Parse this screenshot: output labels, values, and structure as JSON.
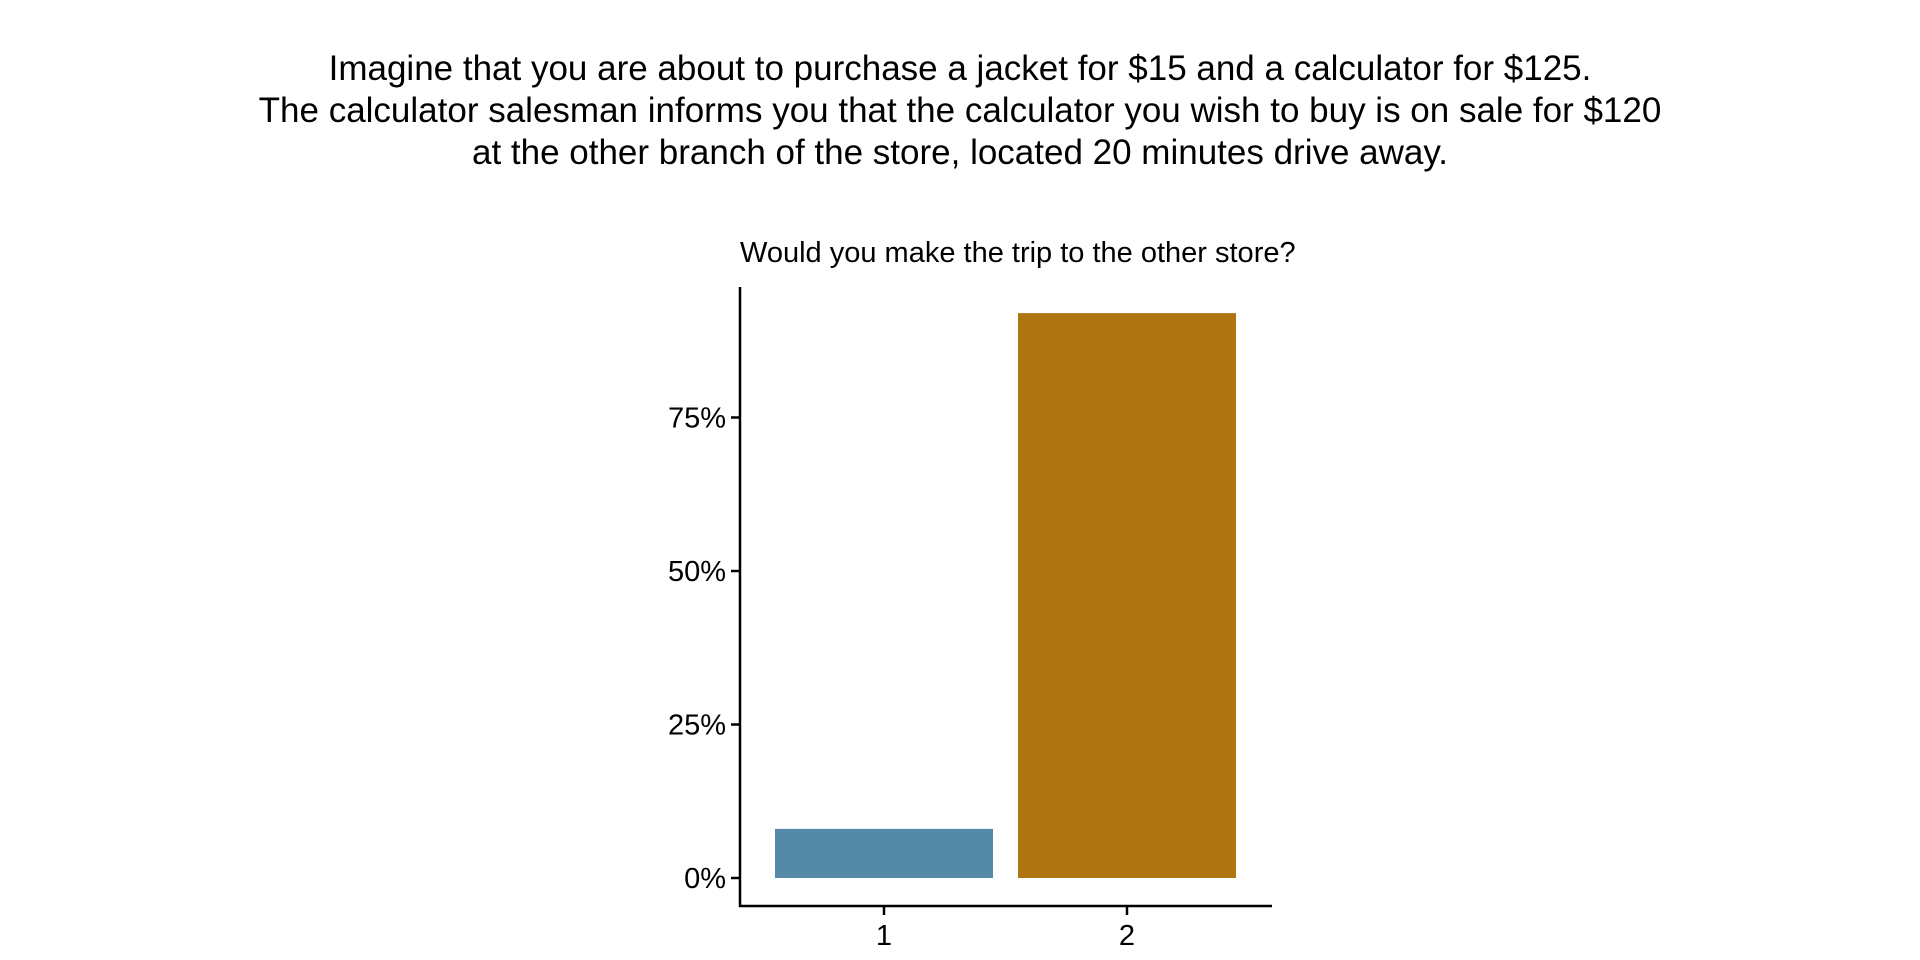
{
  "scenario": {
    "lines": [
      "Imagine that you are about to purchase a jacket for $15 and a calculator for $125.",
      "The calculator salesman informs you that the calculator you wish to buy is on sale for $120",
      "at the other branch of the store, located 20 minutes drive away."
    ]
  },
  "chart_data": {
    "type": "bar",
    "title": "Would you make the trip to the other store?",
    "xlabel": "",
    "ylabel": "",
    "categories": [
      "1",
      "2"
    ],
    "values": [
      8,
      92
    ],
    "colors": [
      "#548aa6",
      "#b07511"
    ],
    "ylim": [
      0,
      96
    ],
    "yticks": [
      {
        "value": 0,
        "label": "0%"
      },
      {
        "value": 25,
        "label": "25%"
      },
      {
        "value": 50,
        "label": "50%"
      },
      {
        "value": 75,
        "label": "75%"
      }
    ],
    "grid": false,
    "legend": "none"
  }
}
